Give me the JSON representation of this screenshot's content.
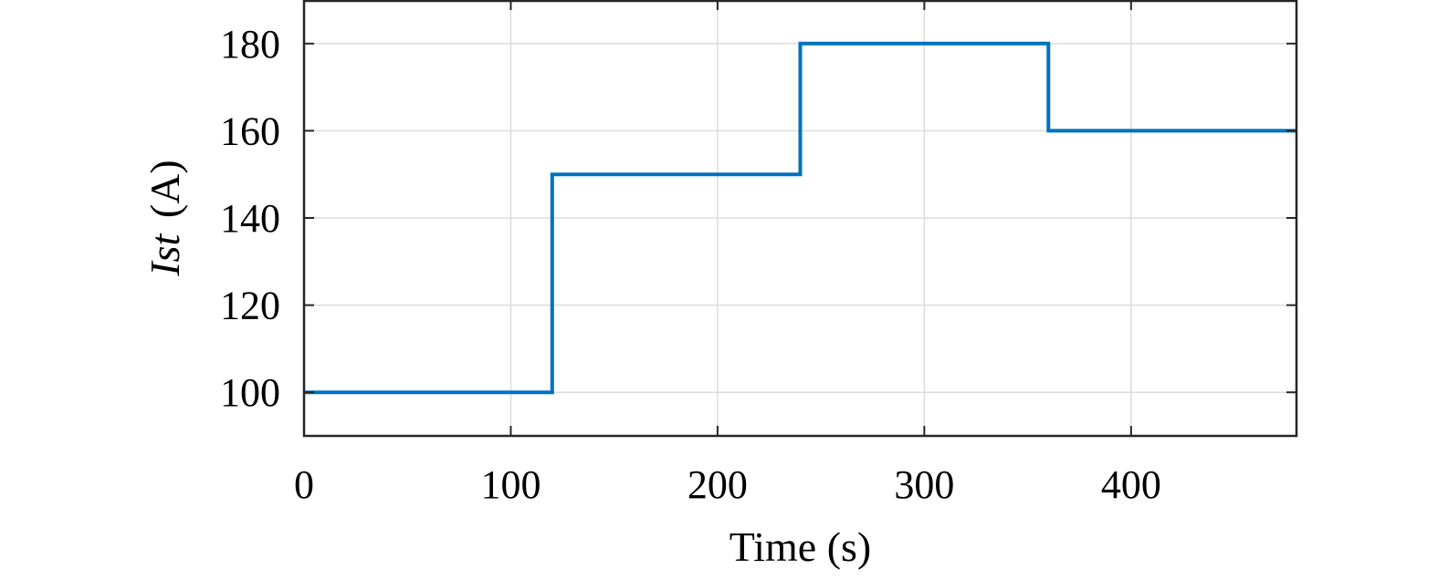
{
  "chart_data": {
    "type": "line",
    "title": "",
    "xlabel": "Time (s)",
    "ylabel": {
      "symbol": "Ist",
      "unit": "(A)"
    },
    "xlim": [
      0,
      480
    ],
    "ylim": [
      90,
      190
    ],
    "xticks": [
      0,
      100,
      200,
      300,
      400
    ],
    "yticks": [
      100,
      120,
      140,
      160,
      180
    ],
    "grid": true,
    "legend": "none",
    "line_style": "step",
    "series": [
      {
        "color": "#0072bd",
        "x": [
          0,
          120,
          120,
          240,
          240,
          360,
          360,
          480
        ],
        "y": [
          100,
          100,
          150,
          150,
          180,
          180,
          160,
          160
        ]
      }
    ]
  }
}
